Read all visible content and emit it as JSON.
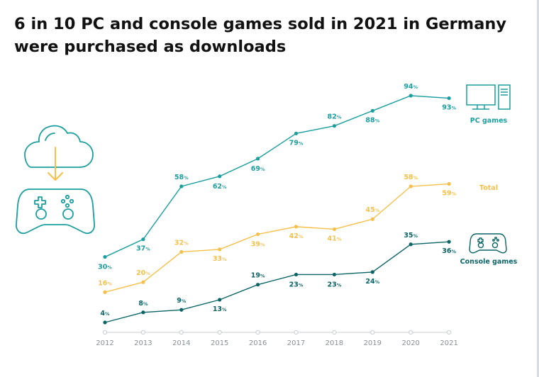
{
  "title": "6 in 10 PC and console games sold in 2021 in Germany were purchased as downloads",
  "colors": {
    "pc": "#1b9e9e",
    "total": "#f7c04a",
    "console": "#0b6466",
    "axis": "#c8ccd0",
    "axis_text": "#8a8f94"
  },
  "icons": {
    "cloud_download": "cloud-download-icon",
    "gamepad_large": "gamepad-icon",
    "pc": "desktop-computer-icon",
    "gamepad_small": "gamepad-icon"
  },
  "chart_data": {
    "type": "line",
    "title": "6 in 10 PC and console games sold in 2021 in Germany were purchased as downloads",
    "x": [
      "2012",
      "2013",
      "2014",
      "2015",
      "2016",
      "2017",
      "2018",
      "2019",
      "2020",
      "2021"
    ],
    "unit": "%",
    "ylim": [
      0,
      100
    ],
    "grid": false,
    "legend": "right, at line ends",
    "series": [
      {
        "name": "PC games",
        "color": "#1b9e9e",
        "values": [
          30,
          37,
          58,
          62,
          69,
          79,
          82,
          88,
          94,
          93
        ]
      },
      {
        "name": "Total",
        "color": "#f7c04a",
        "values": [
          16,
          20,
          32,
          33,
          39,
          42,
          41,
          45,
          58,
          59
        ]
      },
      {
        "name": "Console games",
        "color": "#0b6466",
        "values": [
          4,
          8,
          9,
          13,
          19,
          23,
          23,
          24,
          35,
          36
        ]
      }
    ]
  }
}
